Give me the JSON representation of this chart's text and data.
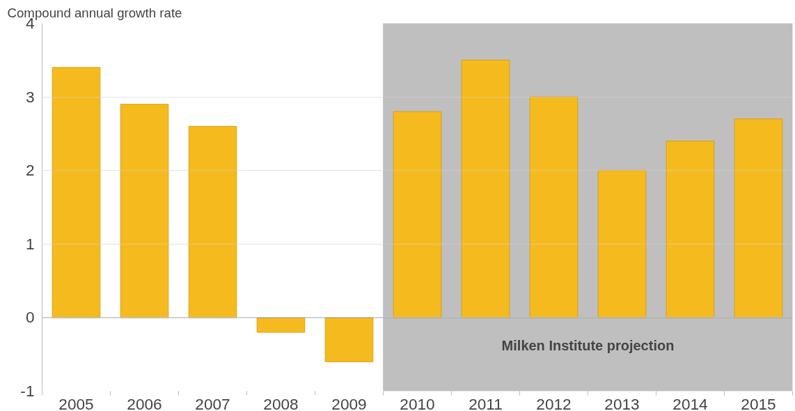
{
  "chart_data": {
    "type": "bar",
    "ylabel": "Compound annual growth rate",
    "categories": [
      "2005",
      "2006",
      "2007",
      "2008",
      "2009",
      "2010",
      "2011",
      "2012",
      "2013",
      "2014",
      "2015"
    ],
    "values": [
      3.4,
      2.9,
      2.6,
      -0.2,
      -0.6,
      2.8,
      3.5,
      3.0,
      2.0,
      2.4,
      2.7
    ],
    "color": "#f5bb1e",
    "ylim": [
      -1,
      4
    ],
    "yticks": [
      -1,
      0,
      1,
      2,
      3,
      4
    ],
    "grid": "y",
    "bands": [
      {
        "axis": "x",
        "from": "2010",
        "to": "2015",
        "label": "Milken Institute projection",
        "color": "#bfbfbf"
      }
    ]
  }
}
